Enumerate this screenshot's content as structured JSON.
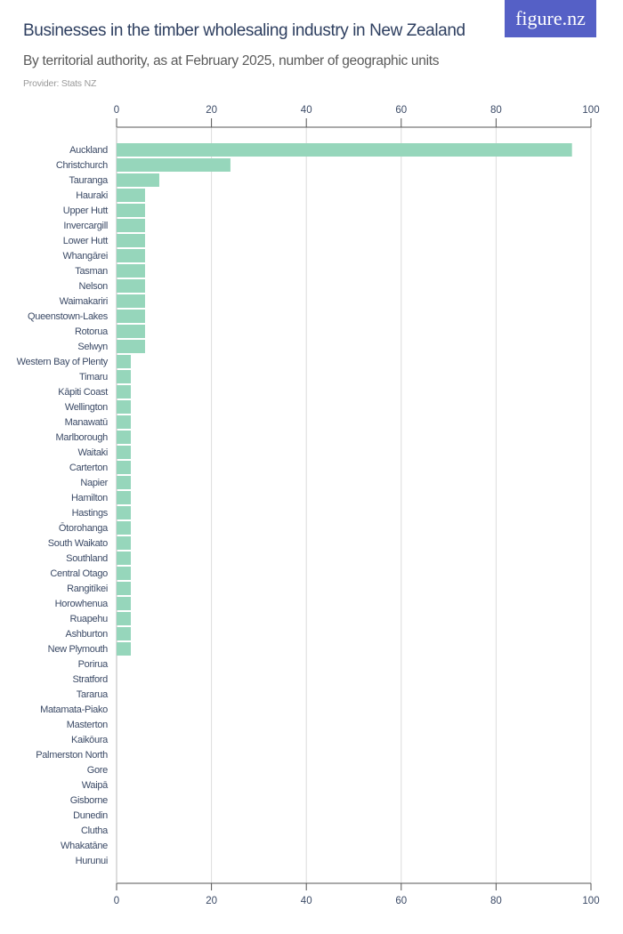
{
  "header": {
    "title": "Businesses in the timber wholesaling industry in New Zealand",
    "subtitle": "By territorial authority, as at February 2025, number of geographic units",
    "provider": "Provider: Stats NZ",
    "logo": "figure.nz"
  },
  "chart_data": {
    "type": "bar",
    "orientation": "horizontal",
    "title": "Businesses in the timber wholesaling industry in New Zealand",
    "subtitle": "By territorial authority, as at February 2025, number of geographic units",
    "xlim": [
      0,
      100
    ],
    "ticks": [
      0,
      20,
      40,
      60,
      80,
      100
    ],
    "grid": true,
    "bar_color": "#96d6bb",
    "categories": [
      "Auckland",
      "Christchurch",
      "Tauranga",
      "Hauraki",
      "Upper Hutt",
      "Invercargill",
      "Lower Hutt",
      "Whangārei",
      "Tasman",
      "Nelson",
      "Waimakariri",
      "Queenstown-Lakes",
      "Rotorua",
      "Selwyn",
      "Western Bay of Plenty",
      "Timaru",
      "Kāpiti Coast",
      "Wellington",
      "Manawatū",
      "Marlborough",
      "Waitaki",
      "Carterton",
      "Napier",
      "Hamilton",
      "Hastings",
      "Ōtorohanga",
      "South Waikato",
      "Southland",
      "Central Otago",
      "Rangitīkei",
      "Horowhenua",
      "Ruapehu",
      "Ashburton",
      "New Plymouth",
      "Porirua",
      "Stratford",
      "Tararua",
      "Matamata-Piako",
      "Masterton",
      "Kaikōura",
      "Palmerston North",
      "Gore",
      "Waipā",
      "Gisborne",
      "Dunedin",
      "Clutha",
      "Whakatāne",
      "Hurunui"
    ],
    "values": [
      96,
      24,
      9,
      6,
      6,
      6,
      6,
      6,
      6,
      6,
      6,
      6,
      6,
      6,
      3,
      3,
      3,
      3,
      3,
      3,
      3,
      3,
      3,
      3,
      3,
      3,
      3,
      3,
      3,
      3,
      3,
      3,
      3,
      3,
      0,
      0,
      0,
      0,
      0,
      0,
      0,
      0,
      0,
      0,
      0,
      0,
      0,
      0
    ]
  }
}
